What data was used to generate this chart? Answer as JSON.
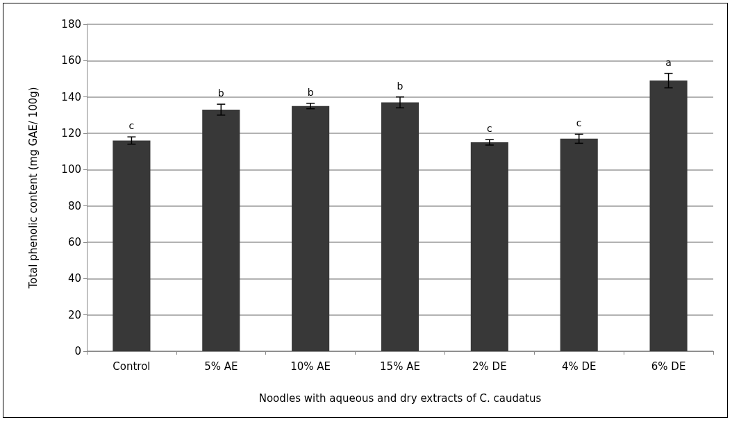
{
  "chart_data": {
    "type": "bar",
    "xlabel": "Noodles with aqueous and dry extracts of C. caudatus",
    "ylabel": "Total phenolic content (mg GAE/ 100g)",
    "categories": [
      "Control",
      "5% AE",
      "10% AE",
      "15% AE",
      "2% DE",
      "4% DE",
      "6% DE"
    ],
    "values": [
      116,
      133,
      135,
      137,
      115,
      117,
      149
    ],
    "errors": [
      2,
      3,
      1.5,
      3,
      1.5,
      2.5,
      4
    ],
    "color": "#383838",
    "ylim": [
      0,
      180
    ],
    "yticks": [
      0,
      20,
      40,
      60,
      80,
      100,
      120,
      140,
      160,
      180
    ],
    "grid": "y",
    "annotations": [
      {
        "text": "c",
        "x": "Control",
        "y": 116
      },
      {
        "text": "b",
        "x": "5% AE",
        "y": 133
      },
      {
        "text": "b",
        "x": "10% AE",
        "y": 135
      },
      {
        "text": "b",
        "x": "15% AE",
        "y": 137
      },
      {
        "text": "c",
        "x": "2% DE",
        "y": 115
      },
      {
        "text": "c",
        "x": "4% DE",
        "y": 117
      },
      {
        "text": "a",
        "x": "6% DE",
        "y": 149
      }
    ]
  }
}
